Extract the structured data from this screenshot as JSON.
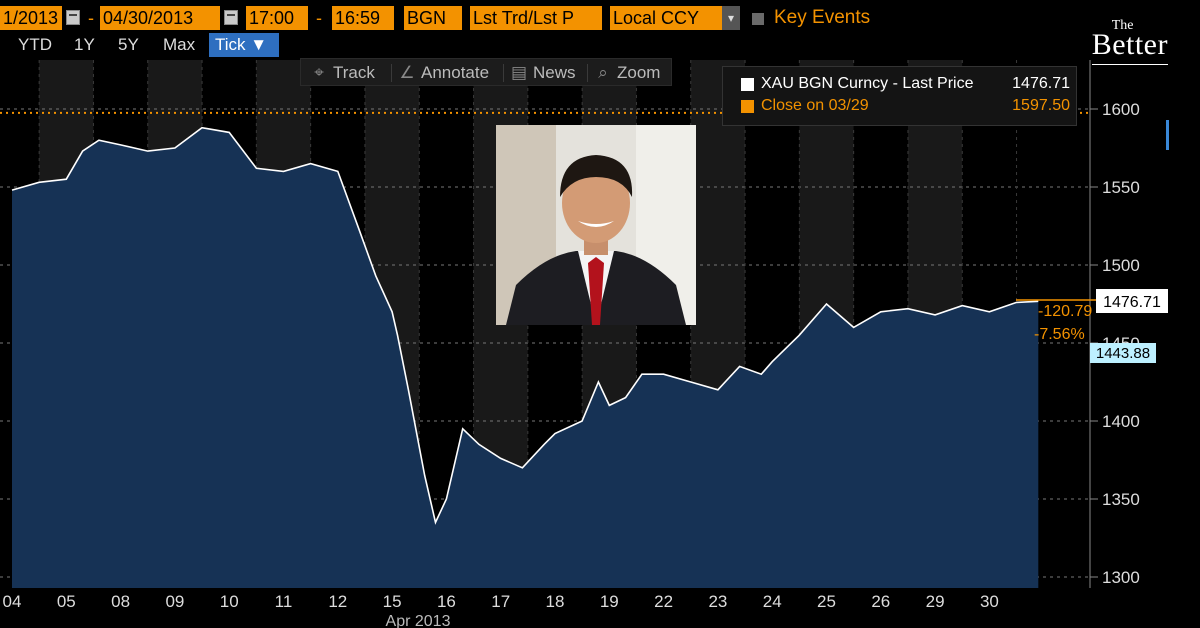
{
  "toolbar": {
    "start_date": "1/2013",
    "end_date": "04/30/2013",
    "start_time": "17:00",
    "end_time": "16:59",
    "source": "BGN",
    "price_mode": "Lst Trd/Lst P",
    "currency": "Local CCY",
    "key_events": "Key Events",
    "dash1": "-",
    "dash2": "-"
  },
  "ranges": [
    "YTD",
    "1Y",
    "5Y",
    "Max",
    "Tick ▼"
  ],
  "active_range": "Tick ▼",
  "chart_tools": [
    {
      "icon": "track-icon",
      "glyph": "⌖",
      "label": "Track"
    },
    {
      "icon": "annotate-icon",
      "glyph": "∠",
      "label": "Annotate"
    },
    {
      "icon": "news-icon",
      "glyph": "▤",
      "label": "News"
    },
    {
      "icon": "zoom-icon",
      "glyph": "⌕",
      "label": "Zoom"
    }
  ],
  "brand": {
    "the": "The",
    "word": "Better"
  },
  "legend": {
    "series_label": "XAU BGN Curncy - Last Price",
    "series_value": "1476.71",
    "close_label": "Close on 03/29",
    "close_value": "1597.50"
  },
  "price_tags": {
    "last": "1476.71",
    "change": "-120.79",
    "change_pct": "-7.56%",
    "low": "1443.88"
  },
  "colors": {
    "accent": "#f39200",
    "area_fill": "#163255",
    "line": "#ffffff",
    "grid": "#7a7a7a",
    "highlight_box": "#bdf0ff"
  },
  "chart_data": {
    "type": "area",
    "title": "",
    "xlabel": "Apr 2013",
    "ylabel": "",
    "ylim": [
      1290,
      1640
    ],
    "y_ticks": [
      1300,
      1350,
      1400,
      1450,
      1500,
      1550,
      1600
    ],
    "y_tick_labels": [
      "1300",
      "1350",
      "1400",
      "1450",
      "1500",
      "1550",
      "1600"
    ],
    "x_tick_labels": [
      "04",
      "05",
      "08",
      "09",
      "10",
      "11",
      "12",
      "15",
      "16",
      "17",
      "18",
      "19",
      "22",
      "23",
      "24",
      "25",
      "26",
      "29",
      "30"
    ],
    "reference_line": {
      "label": "Close on 03/29",
      "value": 1597.5
    },
    "series": [
      {
        "name": "XAU BGN Curncy - Last Price",
        "x": [
          0.0,
          0.5,
          1.0,
          1.3,
          1.6,
          2.0,
          2.5,
          3.0,
          3.5,
          4.0,
          4.5,
          5.0,
          5.5,
          6.0,
          6.4,
          6.7,
          7.0,
          7.1,
          7.3,
          7.6,
          7.8,
          8.0,
          8.3,
          8.6,
          9.0,
          9.4,
          9.8,
          10.0,
          10.5,
          10.8,
          11.0,
          11.3,
          11.6,
          12.0,
          12.5,
          13.0,
          13.4,
          13.8,
          14.0,
          14.5,
          15.0,
          15.5,
          16.0,
          16.5,
          17.0,
          17.5,
          18.0,
          18.5,
          18.9
        ],
        "values": [
          1548,
          1553,
          1555,
          1573,
          1580,
          1577,
          1573,
          1575,
          1588,
          1585,
          1562,
          1560,
          1565,
          1560,
          1522,
          1493,
          1470,
          1455,
          1420,
          1365,
          1335,
          1350,
          1395,
          1385,
          1376,
          1370,
          1385,
          1392,
          1400,
          1425,
          1410,
          1415,
          1430,
          1430,
          1425,
          1420,
          1435,
          1430,
          1438,
          1455,
          1475,
          1460,
          1470,
          1472,
          1468,
          1474,
          1470,
          1476,
          1476.71
        ]
      }
    ]
  }
}
